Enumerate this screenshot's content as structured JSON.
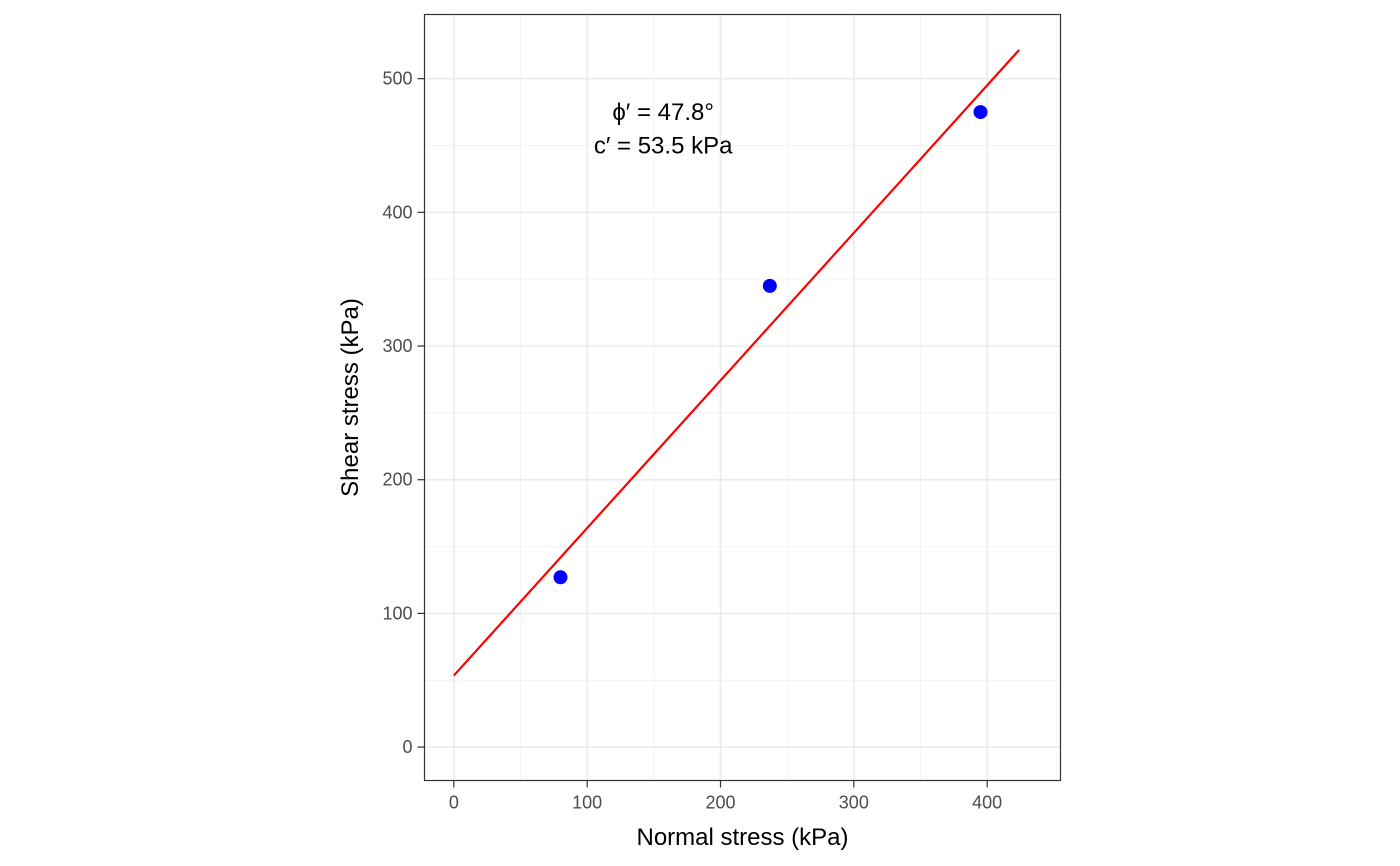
{
  "chart_data": {
    "type": "scatter",
    "xlabel": "Normal stress (kPa)",
    "ylabel": "Shear stress (kPa)",
    "xlim": [
      -22,
      455
    ],
    "ylim": [
      -25,
      548
    ],
    "x_ticks": [
      0,
      100,
      200,
      300,
      400
    ],
    "y_ticks": [
      0,
      100,
      200,
      300,
      400,
      500
    ],
    "x_minor_ticks": [
      50,
      150,
      250,
      350
    ],
    "y_minor_ticks": [
      50,
      150,
      250,
      350,
      450
    ],
    "grid": true,
    "points": {
      "x": [
        80,
        237,
        395
      ],
      "y": [
        127,
        345,
        475
      ],
      "color": "#0000ff"
    },
    "fit_line": {
      "x": [
        0,
        424
      ],
      "y": [
        53.5,
        521.5
      ],
      "color": "#ff0000"
    },
    "annotations": [
      {
        "text": "ϕ′ = 47.8°",
        "x": 157,
        "y": 475
      },
      {
        "text": "c′ = 53.5 kPa",
        "x": 157,
        "y": 450
      }
    ]
  }
}
